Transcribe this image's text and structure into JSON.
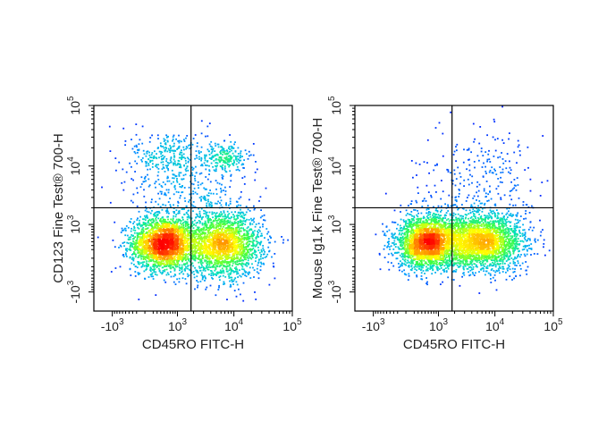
{
  "chart_data": [
    {
      "type": "scatter",
      "subtype": "flow-cytometry-density-dot-plot",
      "title": "",
      "xlabel": "CD45RO FITC-H",
      "ylabel": "CD123 Fine Test® 700-H",
      "x_scale": "biexponential",
      "y_scale": "biexponential",
      "x_ticks": [
        {
          "base": "-10",
          "exp": "3",
          "value": -1000
        },
        {
          "base": "10",
          "exp": "3",
          "value": 1000
        },
        {
          "base": "10",
          "exp": "4",
          "value": 10000
        },
        {
          "base": "10",
          "exp": "5",
          "value": 100000
        }
      ],
      "y_ticks": [
        {
          "base": "-10",
          "exp": "3",
          "value": -1000
        },
        {
          "base": "10",
          "exp": "3",
          "value": 1000
        },
        {
          "base": "10",
          "exp": "4",
          "value": 10000
        },
        {
          "base": "10",
          "exp": "5",
          "value": 100000
        }
      ],
      "quadrant_gate": {
        "x": 1800,
        "y": 2000
      },
      "populations": [
        {
          "x": 500,
          "y": 350,
          "spread_x": 0.28,
          "spread_y": 0.22,
          "weight": 0.44
        },
        {
          "x": 6500,
          "y": 300,
          "spread_x": 0.34,
          "spread_y": 0.26,
          "weight": 0.4
        },
        {
          "x": 1500,
          "y": 3500,
          "spread_x": 0.55,
          "spread_y": 0.35,
          "weight": 0.07
        },
        {
          "x": 700,
          "y": 15000,
          "spread_x": 0.32,
          "spread_y": 0.22,
          "weight": 0.05
        },
        {
          "x": 7000,
          "y": 14000,
          "spread_x": 0.18,
          "spread_y": 0.12,
          "weight": 0.04
        }
      ],
      "grid": false,
      "legend": "none",
      "color_map": [
        "#0000ff",
        "#00a0ff",
        "#00e0c0",
        "#40ff40",
        "#ffff00",
        "#ff8000",
        "#ff0000"
      ]
    },
    {
      "type": "scatter",
      "subtype": "flow-cytometry-density-dot-plot",
      "title": "",
      "xlabel": "CD45RO FITC-H",
      "ylabel": "Mouse Ig1,k Fine Test® 700-H",
      "x_scale": "biexponential",
      "y_scale": "biexponential",
      "x_ticks": [
        {
          "base": "-10",
          "exp": "3",
          "value": -1000
        },
        {
          "base": "10",
          "exp": "3",
          "value": 1000
        },
        {
          "base": "10",
          "exp": "4",
          "value": 10000
        },
        {
          "base": "10",
          "exp": "5",
          "value": 100000
        }
      ],
      "y_ticks": [
        {
          "base": "-10",
          "exp": "3",
          "value": -1000
        },
        {
          "base": "10",
          "exp": "3",
          "value": 1000
        },
        {
          "base": "10",
          "exp": "4",
          "value": 10000
        },
        {
          "base": "10",
          "exp": "5",
          "value": 100000
        }
      ],
      "quadrant_gate": {
        "x": 1800,
        "y": 2000
      },
      "populations": [
        {
          "x": 600,
          "y": 380,
          "spread_x": 0.28,
          "spread_y": 0.22,
          "weight": 0.48
        },
        {
          "x": 6000,
          "y": 400,
          "spread_x": 0.36,
          "spread_y": 0.24,
          "weight": 0.47
        },
        {
          "x": 5000,
          "y": 6000,
          "spread_x": 0.55,
          "spread_y": 0.45,
          "weight": 0.05
        }
      ],
      "grid": false,
      "legend": "none",
      "color_map": [
        "#0000ff",
        "#00a0ff",
        "#00e0c0",
        "#40ff40",
        "#ffff00",
        "#ff8000",
        "#ff0000"
      ]
    }
  ]
}
